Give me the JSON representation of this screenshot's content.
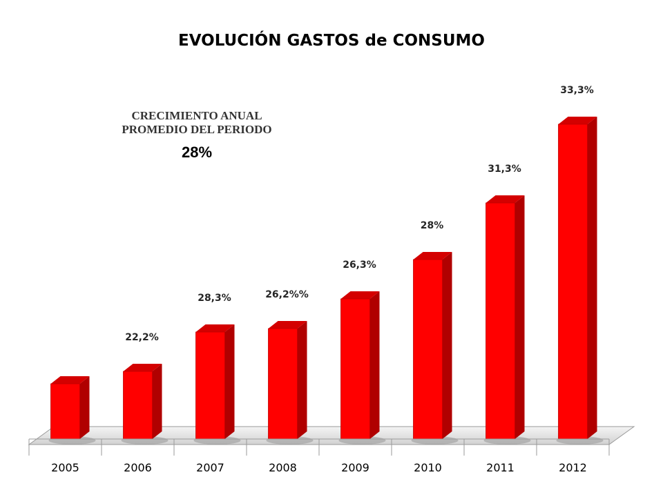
{
  "chart_data": {
    "type": "bar",
    "title": "EVOLUCIÓN GASTOS de CONSUMO",
    "categories": [
      "2005",
      "2006",
      "2007",
      "2008",
      "2009",
      "2010",
      "2011",
      "2012"
    ],
    "values": [
      80,
      98,
      155,
      160,
      203,
      260,
      342,
      456
    ],
    "data_labels": [
      "",
      "22,2%",
      "28,3%",
      "26,2%%",
      "26,3%",
      "28%",
      "31,3%",
      "33,3%"
    ],
    "ylim": [
      0,
      500
    ],
    "grid": false,
    "legend": "none",
    "style": "3d",
    "bar_color": "#ff0000",
    "bar_side_color": "#b00000",
    "bar_top_color": "#d40000"
  },
  "annotation": {
    "line1": "CRECIMIENTO ANUAL",
    "line2": "PROMEDIO DEL PERIODO",
    "value": "28%"
  }
}
